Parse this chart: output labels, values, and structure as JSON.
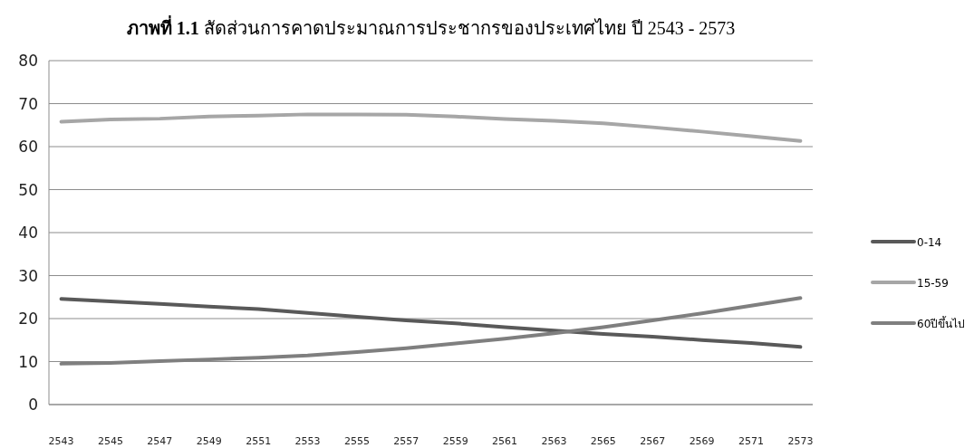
{
  "chart_data": {
    "type": "line",
    "title": "**ภาพที่ 1.1** สัดส่วนการคาดประมาณการประชากรของประเทศไทย ปี 2543 - 2573",
    "x": [
      2543,
      2545,
      2547,
      2549,
      2551,
      2553,
      2555,
      2557,
      2559,
      2561,
      2563,
      2565,
      2567,
      2569,
      2571,
      2573
    ],
    "series": [
      {
        "name": "0-14",
        "color": "#595959",
        "values": [
          24.6,
          24.0,
          23.4,
          22.8,
          22.2,
          21.3,
          20.4,
          19.6,
          18.9,
          18.0,
          17.2,
          16.4,
          15.8,
          15.0,
          14.3,
          13.4
        ]
      },
      {
        "name": "15-59",
        "color": "#a6a6a6",
        "values": [
          65.8,
          66.3,
          66.5,
          67.0,
          67.2,
          67.5,
          67.5,
          67.4,
          67.0,
          66.4,
          66.0,
          65.4,
          64.5,
          63.5,
          62.4,
          61.3
        ]
      },
      {
        "name": "60ปีขึ้นไป",
        "color": "#7f7f7f",
        "values": [
          9.5,
          9.7,
          10.1,
          10.5,
          10.9,
          11.4,
          12.2,
          13.1,
          14.2,
          15.3,
          16.6,
          18.0,
          19.6,
          21.2,
          23.0,
          24.8
        ]
      }
    ],
    "xlim": [
      2542.5,
      2573.5
    ],
    "xticks": [
      2543,
      2545,
      2547,
      2549,
      2551,
      2553,
      2555,
      2557,
      2559,
      2561,
      2563,
      2565,
      2567,
      2569,
      2571,
      2573
    ],
    "ylim": [
      0,
      80
    ],
    "yticks": [
      0,
      10,
      20,
      30,
      40,
      50,
      60,
      70,
      80
    ],
    "grid": "y",
    "legend": "right",
    "marker": "none",
    "line_style": "solid"
  }
}
